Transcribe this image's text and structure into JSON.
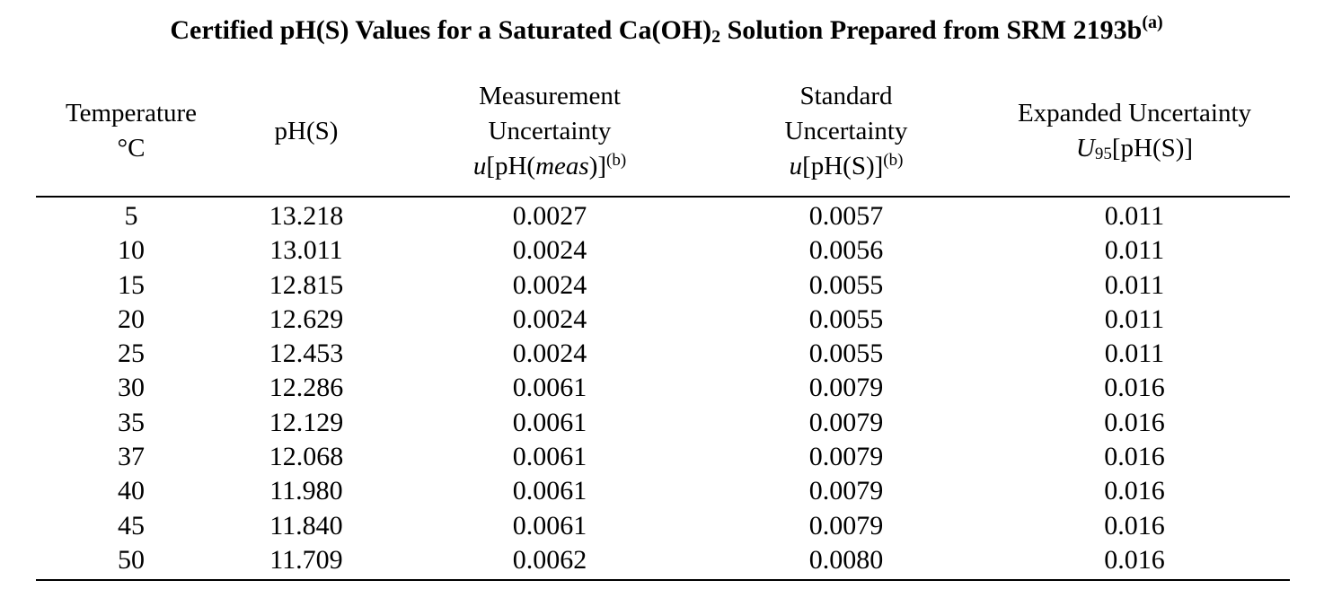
{
  "title": {
    "main": "Certified pH(S) Values for a Saturated Ca(OH)",
    "subscript": "2",
    "rest": " Solution Prepared from SRM 2193b",
    "footnote": "(a)"
  },
  "headers": {
    "temperature": {
      "line1": "Temperature",
      "line2": "°C"
    },
    "ph": {
      "line1": "pH(S)"
    },
    "measurement": {
      "line1": "Measurement",
      "line2": "Uncertainty",
      "sym_u": "u",
      "open": "[pH(",
      "meas": "meas",
      "close": ")]",
      "footnote": "(b)"
    },
    "standard": {
      "line1": "Standard",
      "line2": "Uncertainty",
      "sym_u": "u",
      "expr": "[pH(S)]",
      "footnote": "(b)"
    },
    "expanded": {
      "line1": "Expanded Uncertainty",
      "sym_u": "U",
      "sub": "95",
      "expr": "[pH(S)]"
    }
  },
  "rows": [
    {
      "temp": "5",
      "ph": "13.218",
      "meas": "0.0027",
      "std": "0.0057",
      "exp": "0.011"
    },
    {
      "temp": "10",
      "ph": "13.011",
      "meas": "0.0024",
      "std": "0.0056",
      "exp": "0.011"
    },
    {
      "temp": "15",
      "ph": "12.815",
      "meas": "0.0024",
      "std": "0.0055",
      "exp": "0.011"
    },
    {
      "temp": "20",
      "ph": "12.629",
      "meas": "0.0024",
      "std": "0.0055",
      "exp": "0.011"
    },
    {
      "temp": "25",
      "ph": "12.453",
      "meas": "0.0024",
      "std": "0.0055",
      "exp": "0.011"
    },
    {
      "temp": "30",
      "ph": "12.286",
      "meas": "0.0061",
      "std": "0.0079",
      "exp": "0.016"
    },
    {
      "temp": "35",
      "ph": "12.129",
      "meas": "0.0061",
      "std": "0.0079",
      "exp": "0.016"
    },
    {
      "temp": "37",
      "ph": "12.068",
      "meas": "0.0061",
      "std": "0.0079",
      "exp": "0.016"
    },
    {
      "temp": "40",
      "ph": "11.980",
      "meas": "0.0061",
      "std": "0.0079",
      "exp": "0.016"
    },
    {
      "temp": "45",
      "ph": "11.840",
      "meas": "0.0061",
      "std": "0.0079",
      "exp": "0.016"
    },
    {
      "temp": "50",
      "ph": "11.709",
      "meas": "0.0062",
      "std": "0.0080",
      "exp": "0.016"
    }
  ]
}
